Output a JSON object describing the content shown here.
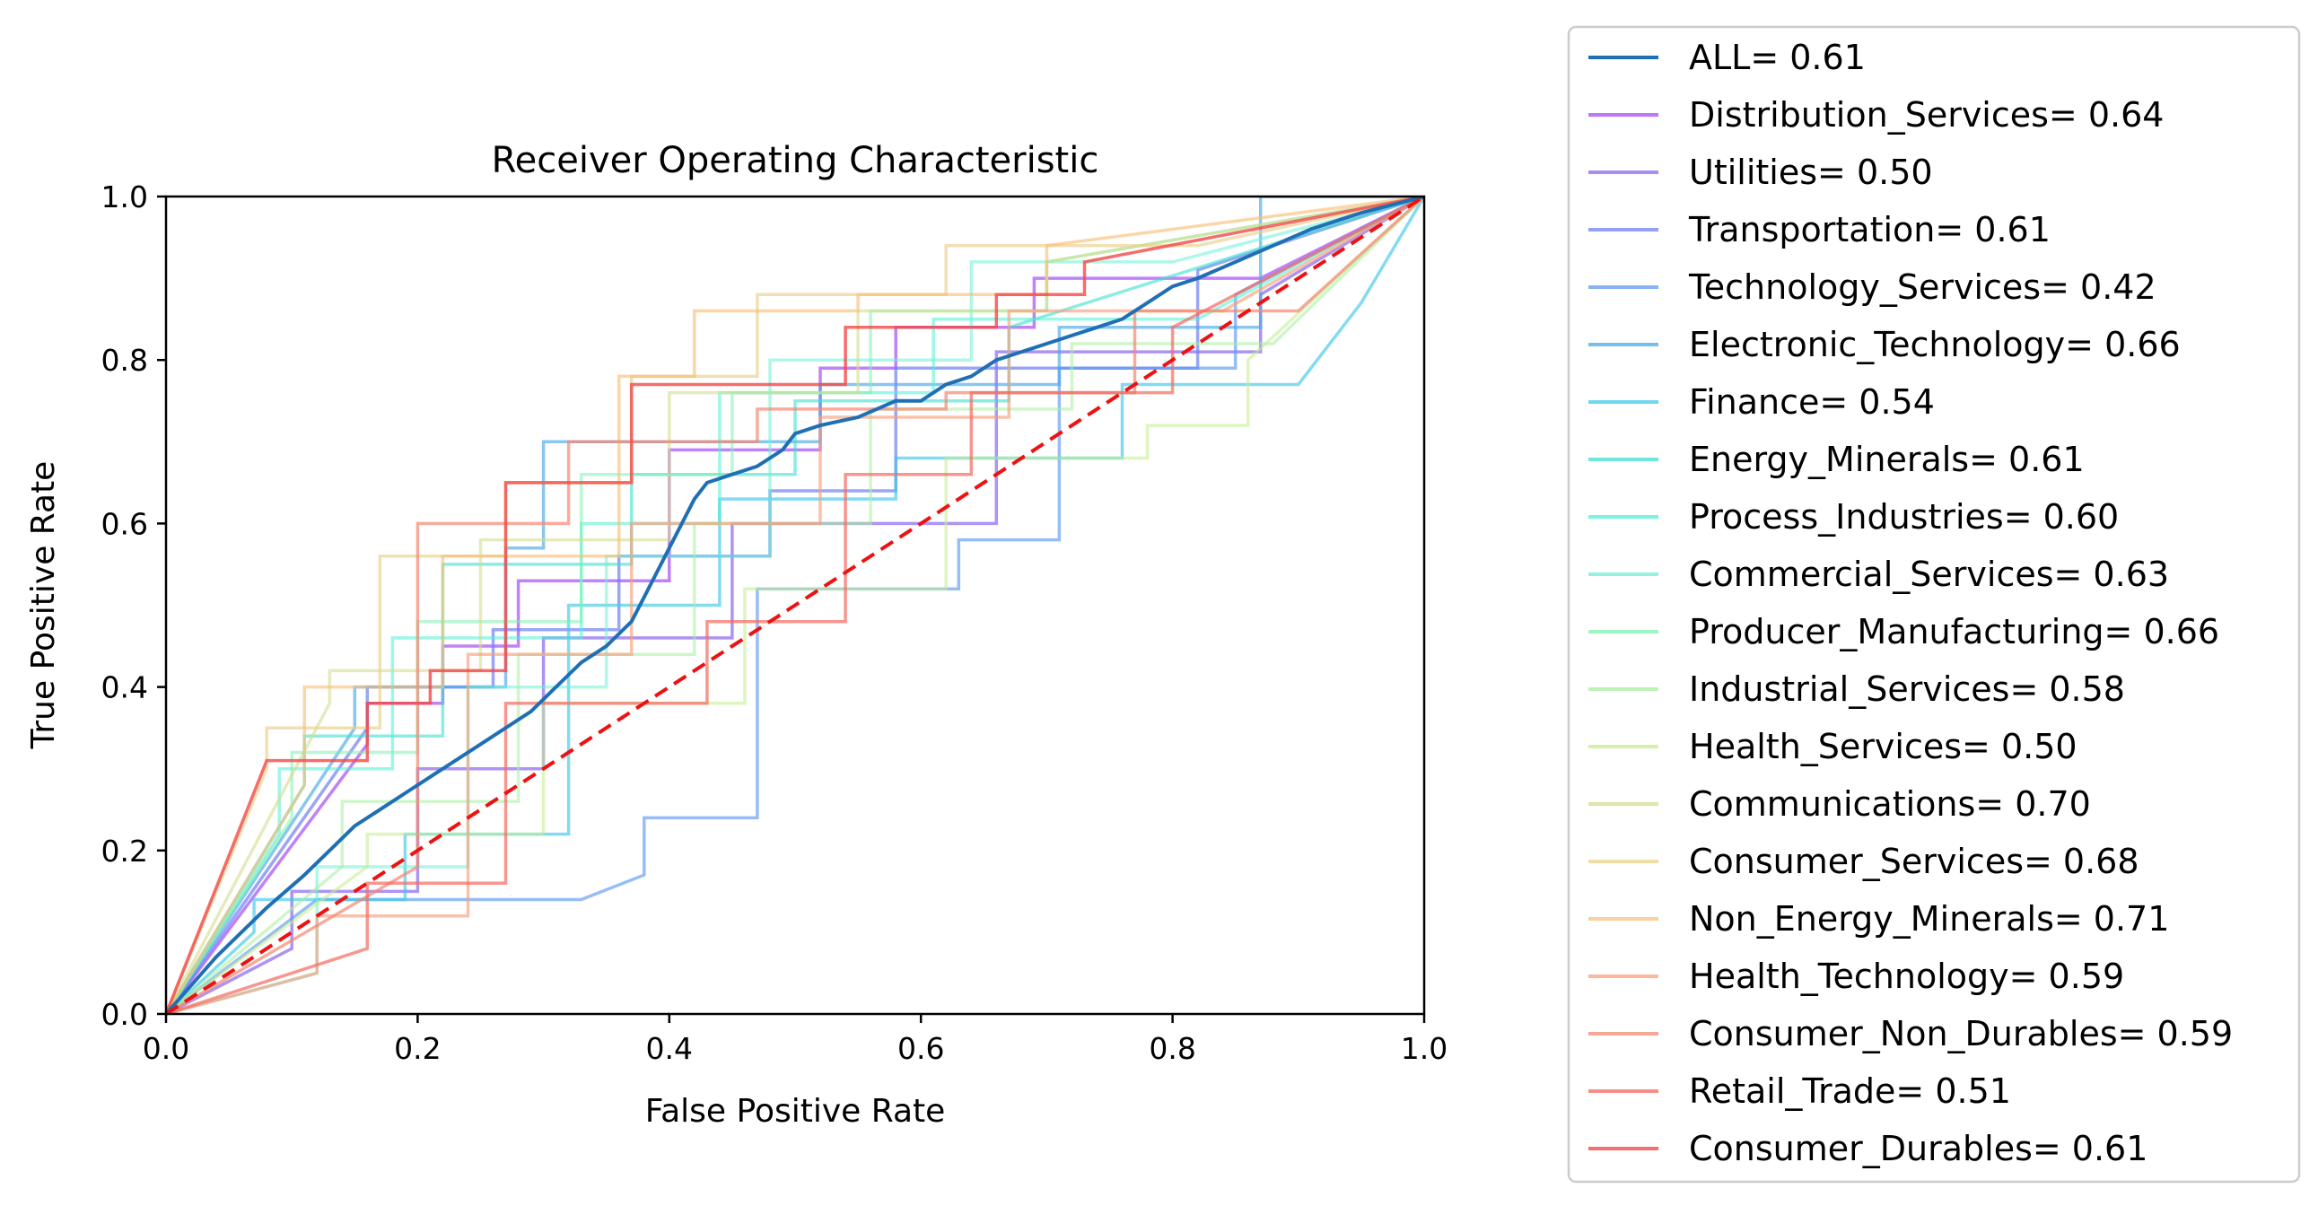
{
  "chart_data": {
    "type": "line",
    "title": "Receiver Operating Characteristic",
    "xlabel": "False Positive Rate",
    "ylabel": "True Positive Rate",
    "xlim": [
      0.0,
      1.0
    ],
    "ylim": [
      0.0,
      1.0
    ],
    "xticks": [
      "0.0",
      "0.2",
      "0.4",
      "0.6",
      "0.8",
      "1.0"
    ],
    "yticks": [
      "0.0",
      "0.2",
      "0.4",
      "0.6",
      "0.8",
      "1.0"
    ],
    "grid": false,
    "legend_position": "outside-right",
    "diagonal": {
      "color": "#ee1111",
      "style": "dashed",
      "x": [
        0,
        1
      ],
      "y": [
        0,
        1
      ]
    },
    "series": [
      {
        "name": "ALL= 0.61",
        "color": "#1f6fb4",
        "opacity": 1.0,
        "width": 4,
        "x": [
          0,
          0.04,
          0.08,
          0.11,
          0.13,
          0.15,
          0.17,
          0.19,
          0.21,
          0.23,
          0.25,
          0.27,
          0.29,
          0.31,
          0.33,
          0.35,
          0.37,
          0.38,
          0.39,
          0.4,
          0.41,
          0.42,
          0.43,
          0.45,
          0.47,
          0.49,
          0.5,
          0.52,
          0.55,
          0.58,
          0.6,
          0.62,
          0.64,
          0.66,
          0.68,
          0.7,
          0.72,
          0.74,
          0.76,
          0.78,
          0.8,
          0.82,
          0.85,
          0.88,
          0.91,
          0.95,
          1.0
        ],
        "y": [
          0,
          0.07,
          0.13,
          0.17,
          0.2,
          0.23,
          0.25,
          0.27,
          0.29,
          0.31,
          0.33,
          0.35,
          0.37,
          0.4,
          0.43,
          0.45,
          0.48,
          0.51,
          0.54,
          0.57,
          0.6,
          0.63,
          0.65,
          0.66,
          0.67,
          0.69,
          0.71,
          0.72,
          0.73,
          0.75,
          0.75,
          0.77,
          0.78,
          0.8,
          0.81,
          0.82,
          0.83,
          0.84,
          0.85,
          0.87,
          0.89,
          0.9,
          0.92,
          0.94,
          0.96,
          0.98,
          1.0
        ]
      },
      {
        "name": "Distribution_Services= 0.64",
        "color": "#a64bf4",
        "opacity": 0.7,
        "width": 3.5,
        "x": [
          0,
          0.16,
          0.16,
          0.22,
          0.22,
          0.28,
          0.28,
          0.4,
          0.4,
          0.52,
          0.52,
          0.58,
          0.58,
          0.69,
          0.69,
          0.87,
          1.0
        ],
        "y": [
          0,
          0.33,
          0.38,
          0.38,
          0.45,
          0.45,
          0.53,
          0.53,
          0.69,
          0.69,
          0.79,
          0.79,
          0.84,
          0.84,
          0.9,
          0.9,
          1.0
        ]
      },
      {
        "name": "Utilities= 0.50",
        "color": "#8a66f0",
        "opacity": 0.7,
        "width": 3.5,
        "x": [
          0,
          0.1,
          0.1,
          0.2,
          0.2,
          0.3,
          0.3,
          0.45,
          0.45,
          0.66,
          0.66,
          0.87,
          0.87,
          1.0
        ],
        "y": [
          0,
          0.08,
          0.15,
          0.15,
          0.3,
          0.3,
          0.46,
          0.46,
          0.6,
          0.6,
          0.81,
          0.81,
          0.88,
          1.0
        ]
      },
      {
        "name": "Transportation= 0.61",
        "color": "#6d80f2",
        "opacity": 0.7,
        "width": 3.5,
        "x": [
          0,
          0.16,
          0.16,
          0.26,
          0.26,
          0.36,
          0.36,
          0.48,
          0.48,
          0.58,
          0.58,
          0.82,
          0.82,
          1.0
        ],
        "y": [
          0,
          0.35,
          0.4,
          0.4,
          0.47,
          0.47,
          0.56,
          0.56,
          0.64,
          0.64,
          0.79,
          0.79,
          0.91,
          1.0
        ]
      },
      {
        "name": "Technology_Services= 0.42",
        "color": "#5e9af0",
        "opacity": 0.65,
        "width": 3.5,
        "x": [
          0,
          0.12,
          0.12,
          0.33,
          0.38,
          0.38,
          0.47,
          0.47,
          0.63,
          0.63,
          0.71,
          0.71,
          0.85,
          0.85,
          1.0
        ],
        "y": [
          0,
          0.14,
          0.14,
          0.14,
          0.17,
          0.24,
          0.24,
          0.52,
          0.52,
          0.58,
          0.58,
          0.79,
          0.79,
          0.88,
          1.0
        ]
      },
      {
        "name": "Electronic_Technology= 0.66",
        "color": "#4aa8e8",
        "opacity": 0.65,
        "width": 3.5,
        "x": [
          0,
          0.15,
          0.15,
          0.27,
          0.27,
          0.3,
          0.3,
          0.52,
          0.52,
          0.71,
          0.71,
          0.87,
          0.87,
          1.0
        ],
        "y": [
          0,
          0.35,
          0.4,
          0.4,
          0.57,
          0.57,
          0.7,
          0.7,
          0.77,
          0.77,
          0.84,
          0.84,
          1.0,
          1.0
        ]
      },
      {
        "name": "Finance= 0.54",
        "color": "#40c7ea",
        "opacity": 0.65,
        "width": 3.5,
        "x": [
          0,
          0.07,
          0.07,
          0.19,
          0.19,
          0.32,
          0.32,
          0.44,
          0.44,
          0.58,
          0.58,
          0.76,
          0.76,
          0.9,
          0.95,
          0.95,
          1.0
        ],
        "y": [
          0,
          0.1,
          0.14,
          0.14,
          0.22,
          0.22,
          0.5,
          0.5,
          0.63,
          0.63,
          0.68,
          0.68,
          0.77,
          0.77,
          0.87,
          0.87,
          1.0
        ]
      },
      {
        "name": "Energy_Minerals= 0.61",
        "color": "#3ee0d0",
        "opacity": 0.6,
        "width": 3.5,
        "x": [
          0,
          0.11,
          0.11,
          0.22,
          0.22,
          0.37,
          0.37,
          0.5,
          0.5,
          0.67,
          0.67,
          1.0
        ],
        "y": [
          0,
          0.28,
          0.34,
          0.34,
          0.55,
          0.55,
          0.66,
          0.66,
          0.75,
          0.75,
          0.84,
          1.0
        ]
      },
      {
        "name": "Process_Industries= 0.60",
        "color": "#4cf0d4",
        "opacity": 0.55,
        "width": 3.5,
        "x": [
          0,
          0.09,
          0.09,
          0.18,
          0.18,
          0.33,
          0.33,
          0.44,
          0.44,
          0.61,
          0.61,
          0.82,
          1.0
        ],
        "y": [
          0,
          0.22,
          0.3,
          0.3,
          0.46,
          0.46,
          0.6,
          0.6,
          0.76,
          0.76,
          0.85,
          0.85,
          1.0
        ]
      },
      {
        "name": "Commercial_Services= 0.63",
        "color": "#6df0d6",
        "opacity": 0.55,
        "width": 3.5,
        "x": [
          0,
          0.12,
          0.12,
          0.24,
          0.24,
          0.35,
          0.35,
          0.48,
          0.48,
          0.64,
          0.64,
          0.8,
          1.0
        ],
        "y": [
          0,
          0.05,
          0.18,
          0.18,
          0.4,
          0.4,
          0.56,
          0.56,
          0.8,
          0.8,
          0.92,
          0.92,
          1.0
        ]
      },
      {
        "name": "Producer_Manufacturing= 0.66",
        "color": "#7ef2b0",
        "opacity": 0.55,
        "width": 3.5,
        "x": [
          0,
          0.1,
          0.1,
          0.2,
          0.2,
          0.33,
          0.33,
          0.45,
          0.45,
          0.56,
          0.56,
          0.7,
          0.7,
          1.0
        ],
        "y": [
          0,
          0.24,
          0.32,
          0.32,
          0.48,
          0.48,
          0.66,
          0.66,
          0.76,
          0.76,
          0.86,
          0.86,
          0.92,
          1.0
        ]
      },
      {
        "name": "Industrial_Services= 0.58",
        "color": "#a8eea0",
        "opacity": 0.55,
        "width": 3.5,
        "x": [
          0,
          0.14,
          0.14,
          0.28,
          0.28,
          0.42,
          0.42,
          0.56,
          0.56,
          0.72,
          0.72,
          0.88,
          1.0
        ],
        "y": [
          0,
          0.18,
          0.26,
          0.26,
          0.44,
          0.44,
          0.6,
          0.6,
          0.74,
          0.74,
          0.82,
          0.82,
          1.0
        ]
      },
      {
        "name": "Health_Services= 0.50",
        "color": "#c4ec8c",
        "opacity": 0.55,
        "width": 3.5,
        "x": [
          0,
          0.16,
          0.16,
          0.3,
          0.3,
          0.46,
          0.46,
          0.62,
          0.62,
          0.78,
          0.78,
          0.86,
          0.86,
          1.0
        ],
        "y": [
          0,
          0.18,
          0.22,
          0.22,
          0.38,
          0.38,
          0.52,
          0.52,
          0.68,
          0.68,
          0.72,
          0.72,
          0.8,
          1.0
        ]
      },
      {
        "name": "Communications= 0.70",
        "color": "#d6dc90",
        "opacity": 0.6,
        "width": 3.5,
        "x": [
          0,
          0.13,
          0.13,
          0.25,
          0.25,
          0.4,
          0.4,
          0.55,
          0.55,
          0.7,
          0.7,
          1.0
        ],
        "y": [
          0,
          0.38,
          0.42,
          0.42,
          0.58,
          0.58,
          0.76,
          0.76,
          0.86,
          0.86,
          0.92,
          1.0
        ]
      },
      {
        "name": "Consumer_Services= 0.68",
        "color": "#ead08a",
        "opacity": 0.65,
        "width": 3.5,
        "x": [
          0,
          0.08,
          0.08,
          0.17,
          0.17,
          0.27,
          0.27,
          0.37,
          0.37,
          0.47,
          0.47,
          0.62,
          0.62,
          0.82,
          1.0
        ],
        "y": [
          0,
          0.3,
          0.35,
          0.35,
          0.56,
          0.56,
          0.65,
          0.65,
          0.78,
          0.78,
          0.88,
          0.88,
          0.94,
          0.94,
          1.0
        ]
      },
      {
        "name": "Non_Energy_Minerals= 0.71",
        "color": "#f8c07a",
        "opacity": 0.65,
        "width": 3.5,
        "x": [
          0,
          0.11,
          0.11,
          0.22,
          0.22,
          0.36,
          0.36,
          0.42,
          0.42,
          0.55,
          0.55,
          0.7,
          0.7,
          1.0
        ],
        "y": [
          0,
          0.28,
          0.4,
          0.4,
          0.56,
          0.56,
          0.78,
          0.78,
          0.86,
          0.86,
          0.88,
          0.88,
          0.94,
          1.0
        ]
      },
      {
        "name": "Health_Technology= 0.59",
        "color": "#f8a07c",
        "opacity": 0.65,
        "width": 3.5,
        "x": [
          0,
          0.12,
          0.12,
          0.24,
          0.24,
          0.37,
          0.37,
          0.52,
          0.52,
          0.67,
          0.67,
          0.84,
          1.0
        ],
        "y": [
          0,
          0.05,
          0.12,
          0.12,
          0.44,
          0.44,
          0.6,
          0.6,
          0.73,
          0.73,
          0.86,
          0.86,
          1.0
        ]
      },
      {
        "name": "Consumer_Non_Durables= 0.59",
        "color": "#f48870",
        "opacity": 0.7,
        "width": 3.5,
        "x": [
          0,
          0.2,
          0.2,
          0.32,
          0.32,
          0.47,
          0.47,
          0.62,
          0.62,
          0.77,
          0.77,
          0.9,
          1.0
        ],
        "y": [
          0,
          0.18,
          0.6,
          0.6,
          0.7,
          0.7,
          0.74,
          0.74,
          0.76,
          0.76,
          0.86,
          0.86,
          1.0
        ]
      },
      {
        "name": "Retail_Trade= 0.51",
        "color": "#f46a60",
        "opacity": 0.7,
        "width": 3.5,
        "x": [
          0,
          0.16,
          0.16,
          0.27,
          0.27,
          0.43,
          0.43,
          0.54,
          0.54,
          0.64,
          0.64,
          0.8,
          0.8,
          1.0
        ],
        "y": [
          0,
          0.08,
          0.16,
          0.16,
          0.38,
          0.38,
          0.48,
          0.48,
          0.66,
          0.66,
          0.76,
          0.76,
          0.84,
          1.0
        ]
      },
      {
        "name": "Consumer_Durables= 0.61",
        "color": "#f24848",
        "opacity": 0.8,
        "width": 3.5,
        "x": [
          0,
          0.08,
          0.16,
          0.16,
          0.21,
          0.21,
          0.27,
          0.27,
          0.37,
          0.37,
          0.54,
          0.54,
          0.66,
          0.66,
          0.73,
          0.73,
          1.0
        ],
        "y": [
          0,
          0.31,
          0.31,
          0.38,
          0.38,
          0.42,
          0.42,
          0.65,
          0.65,
          0.77,
          0.77,
          0.84,
          0.84,
          0.88,
          0.88,
          0.92,
          1.0
        ]
      }
    ]
  }
}
